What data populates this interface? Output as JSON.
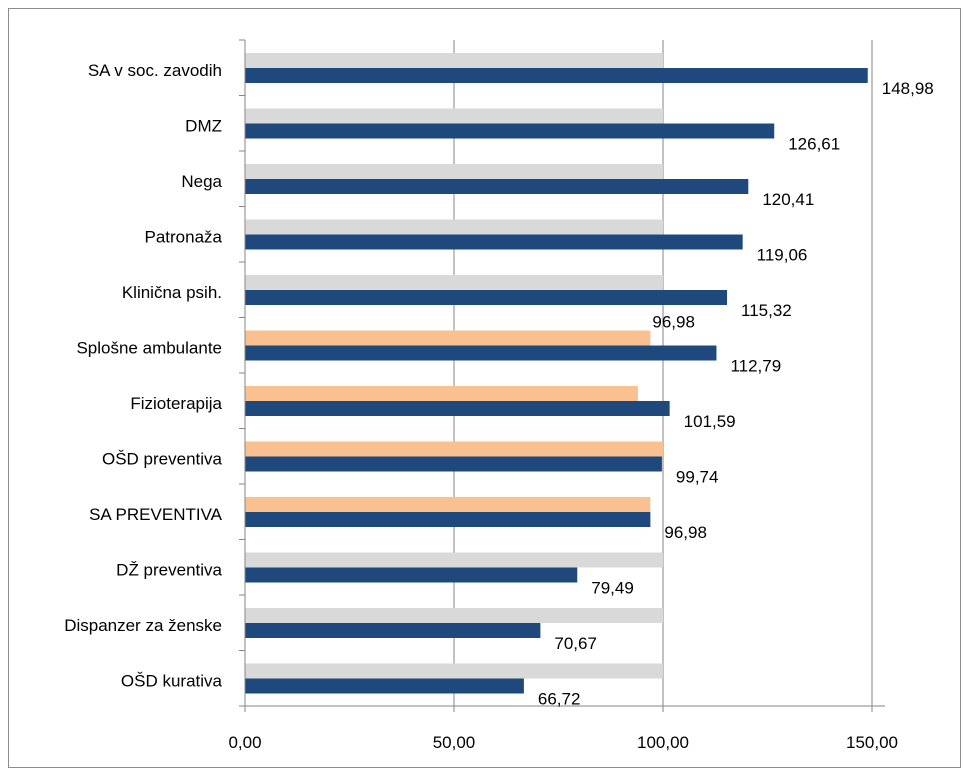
{
  "chart_data": {
    "type": "bar",
    "orientation": "horizontal",
    "categories": [
      "SA v soc. zavodih",
      "DMZ",
      "Nega",
      "Patronaža",
      "Klinična psih.",
      "Splošne ambulante",
      "Fizioterapija",
      "OŠD preventiva",
      "SA PREVENTIVA",
      "DŽ preventiva",
      "Dispanzer za ženske",
      "OŠD kurativa"
    ],
    "series": [
      {
        "values": [
          100,
          100,
          100,
          100,
          100,
          96.98,
          94,
          100,
          96.98,
          100,
          100,
          100
        ],
        "labels": [
          "",
          "",
          "",
          "",
          "",
          "96,98",
          "",
          "",
          "",
          "",
          "",
          ""
        ],
        "colors": [
          "#d9d9d9",
          "#d9d9d9",
          "#d9d9d9",
          "#d9d9d9",
          "#d9d9d9",
          "#fac090",
          "#fac090",
          "#fac090",
          "#fac090",
          "#d9d9d9",
          "#d9d9d9",
          "#d9d9d9"
        ]
      },
      {
        "values": [
          148.98,
          126.61,
          120.41,
          119.06,
          115.32,
          112.79,
          101.59,
          99.74,
          96.98,
          79.49,
          70.67,
          66.72
        ],
        "labels": [
          "148,98",
          "126,61",
          "120,41",
          "119,06",
          "115,32",
          "112,79",
          "101,59",
          "99,74",
          "96,98",
          "79,49",
          "70,67",
          "66,72"
        ],
        "color": "#1f497d"
      }
    ],
    "xlim": [
      0,
      150
    ],
    "xticks": [
      0,
      50,
      100,
      150
    ],
    "xtick_labels": [
      "0,00",
      "50,00",
      "100,00",
      "150,00"
    ],
    "grid": "vertical",
    "legend": "none"
  }
}
